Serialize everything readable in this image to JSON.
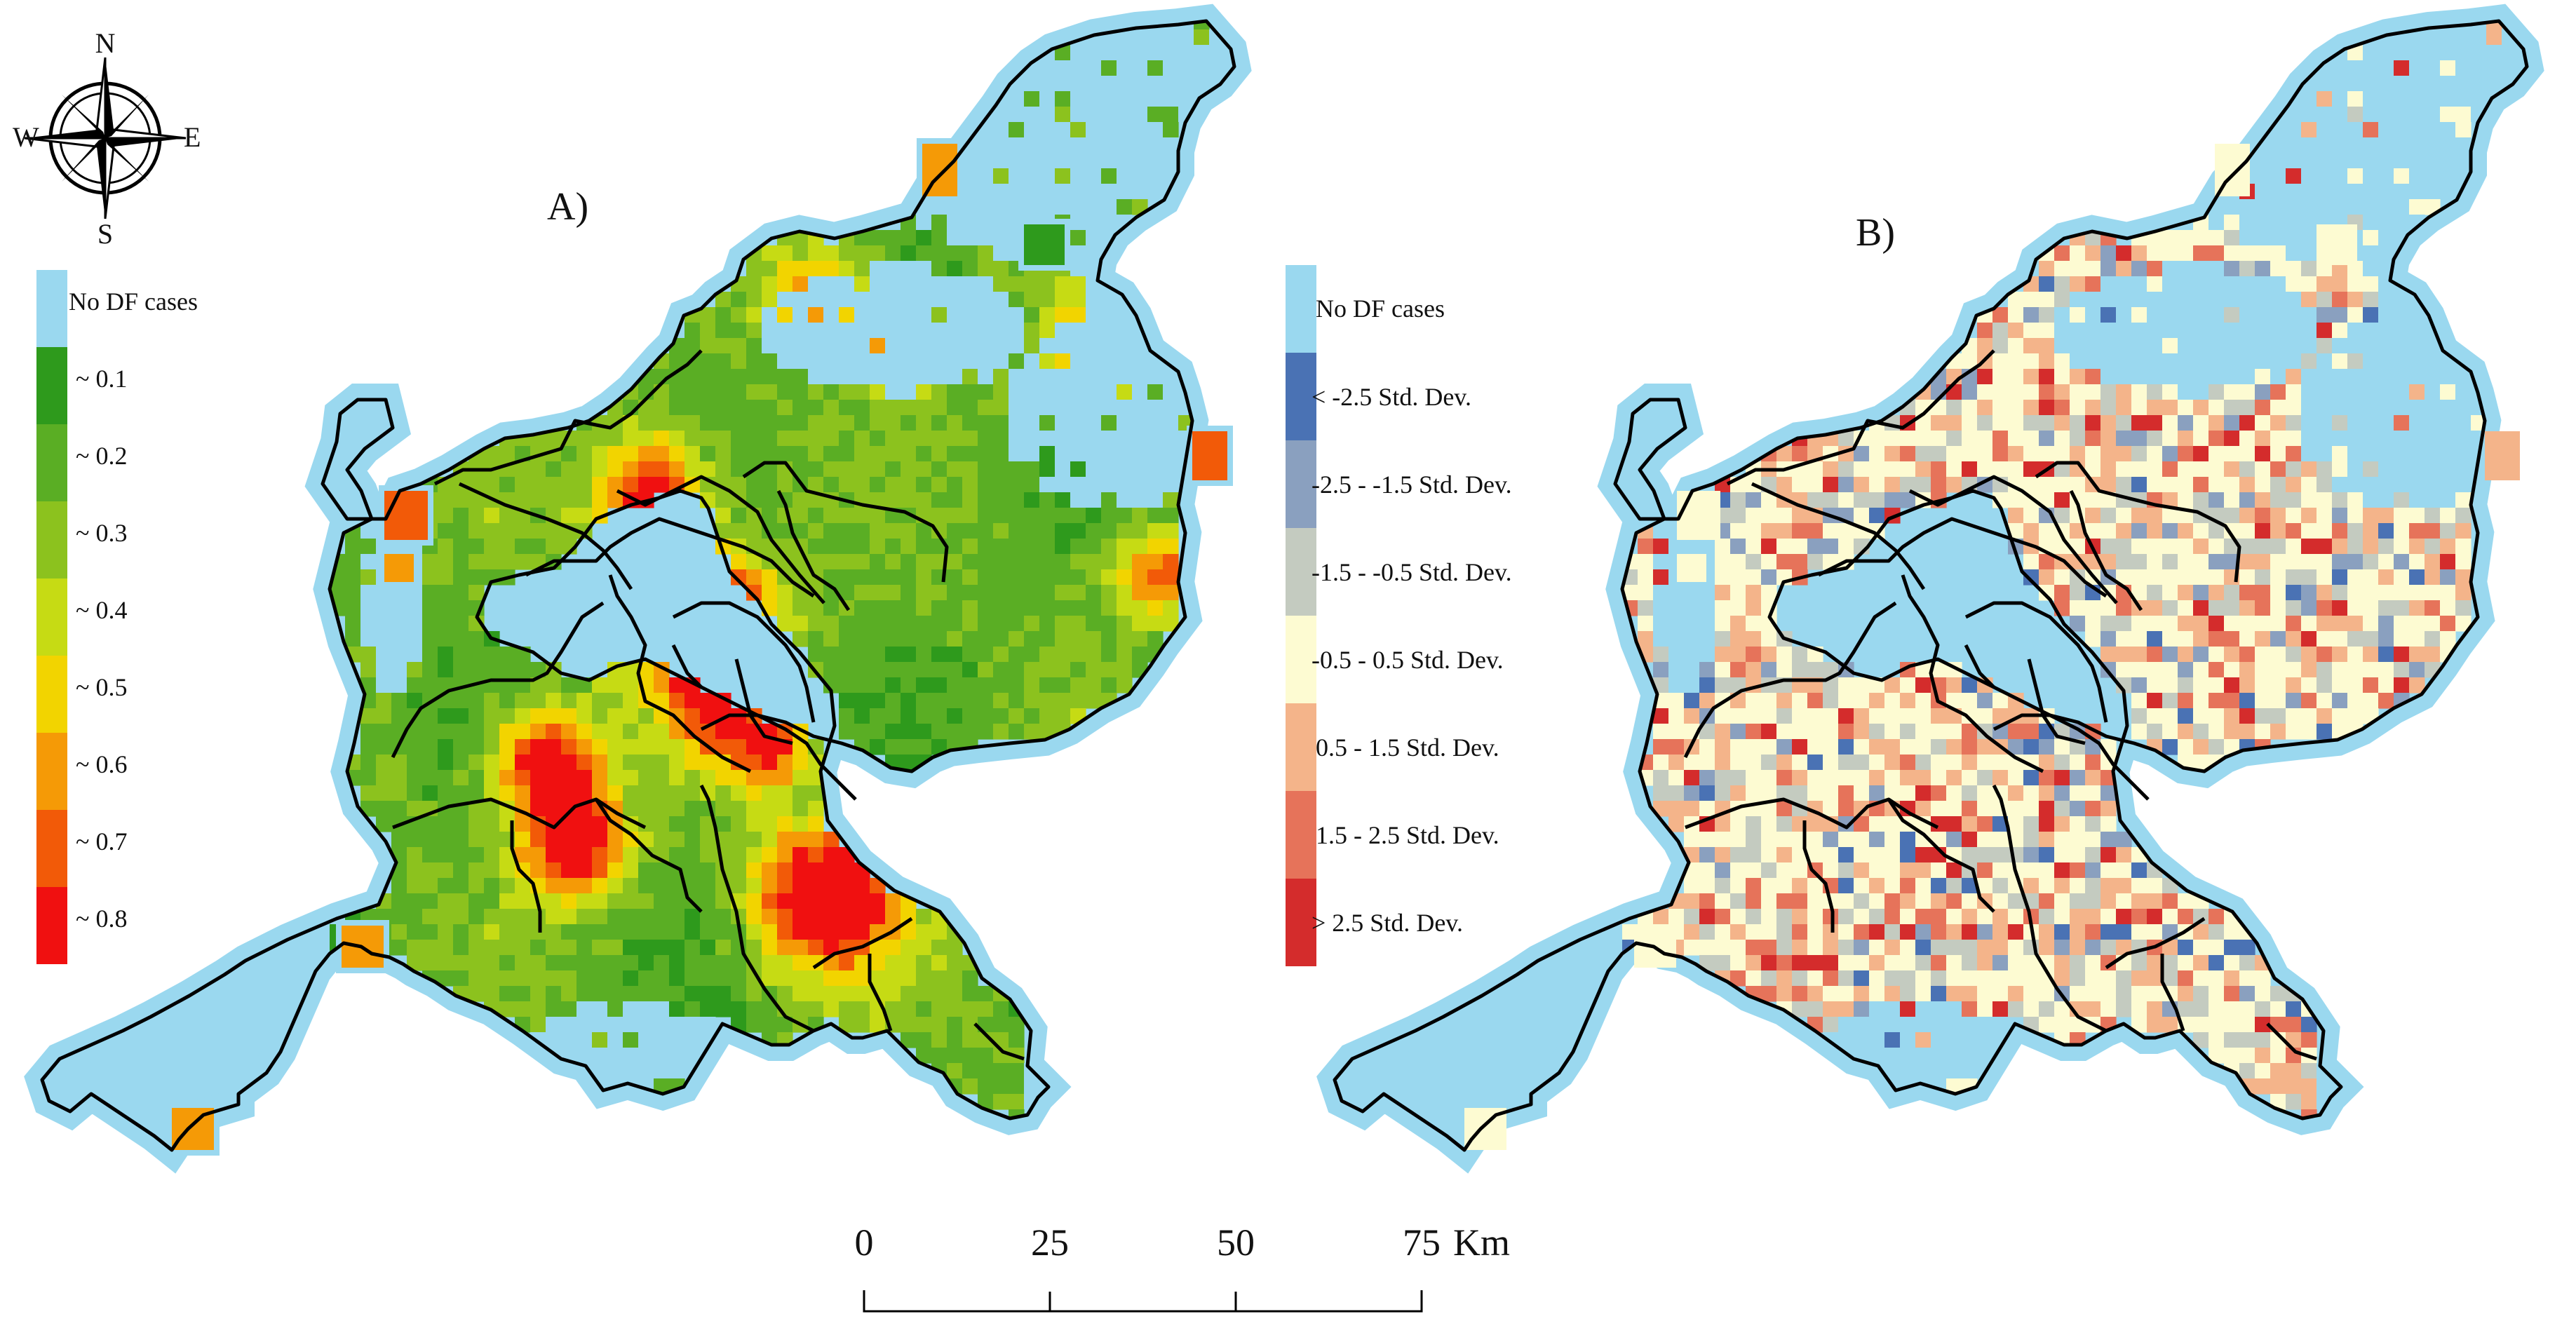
{
  "compass": {
    "north": "N",
    "south": "S",
    "east": "E",
    "west": "W",
    "icon": "compass-rose-icon"
  },
  "panel_a": {
    "label": "A)",
    "legend": [
      {
        "label": "No DF cases",
        "color": "#9ad8ef"
      },
      {
        "label": "~ 0.1",
        "color": "#2e9a1c"
      },
      {
        "label": "~ 0.2",
        "color": "#5aae24"
      },
      {
        "label": "~ 0.3",
        "color": "#8cc21e"
      },
      {
        "label": "~ 0.4",
        "color": "#c6db14"
      },
      {
        "label": "~ 0.5",
        "color": "#f2d400"
      },
      {
        "label": "~ 0.6",
        "color": "#f59a06"
      },
      {
        "label": "~ 0.7",
        "color": "#f25a08"
      },
      {
        "label": "~ 0.8",
        "color": "#f01010"
      }
    ]
  },
  "panel_b": {
    "label": "B)",
    "legend": [
      {
        "label": "No DF cases",
        "color": "#9ad8ef"
      },
      {
        "label": "< -2.5 Std. Dev.",
        "color": "#4a72b4"
      },
      {
        "label": "-2.5 - -1.5 Std. Dev.",
        "color": "#8aa0bf"
      },
      {
        "label": "-1.5 - -0.5 Std. Dev.",
        "color": "#c4cbc0"
      },
      {
        "label": "-0.5 - 0.5 Std. Dev.",
        "color": "#fdfbd2"
      },
      {
        "label": "0.5 - 1.5 Std. Dev.",
        "color": "#f4b48a"
      },
      {
        "label": "1.5 - 2.5 Std. Dev.",
        "color": "#e6735a"
      },
      {
        "label": "> 2.5 Std. Dev.",
        "color": "#d42c2c"
      }
    ]
  },
  "scale_bar": {
    "ticks": [
      "0",
      "25",
      "50",
      "75"
    ],
    "unit": "Km"
  }
}
